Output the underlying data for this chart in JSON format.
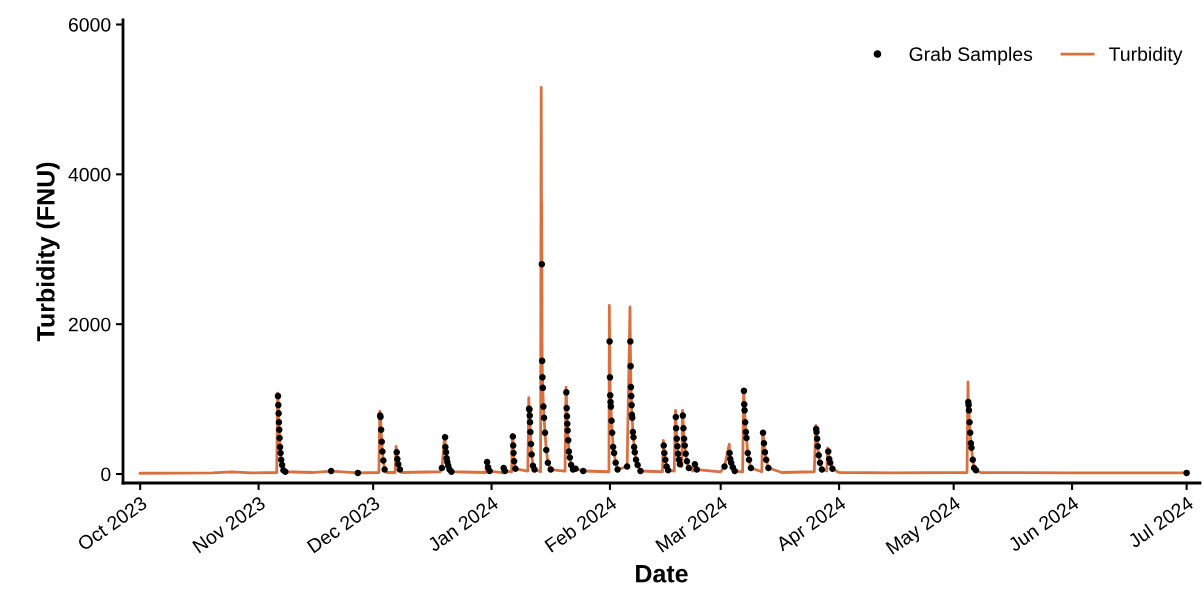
{
  "chart_data": {
    "type": "line",
    "xlabel": "Date",
    "ylabel": "Turbidity (FNU)",
    "xlim": [
      "2023-09-26T12:00",
      "2024-07-04T12:00"
    ],
    "xticks": [
      {
        "value": "2023-10-01",
        "label": "Oct 2023"
      },
      {
        "value": "2023-11-01",
        "label": "Nov 2023"
      },
      {
        "value": "2023-12-01",
        "label": "Dec 2023"
      },
      {
        "value": "2024-01-01",
        "label": "Jan 2024"
      },
      {
        "value": "2024-02-01",
        "label": "Feb 2024"
      },
      {
        "value": "2024-03-01",
        "label": "Mar 2024"
      },
      {
        "value": "2024-04-01",
        "label": "Apr 2024"
      },
      {
        "value": "2024-05-01",
        "label": "May 2024"
      },
      {
        "value": "2024-06-01",
        "label": "Jun 2024"
      },
      {
        "value": "2024-07-01",
        "label": "Jul 2024"
      }
    ],
    "ylim": [
      -120,
      6060
    ],
    "yticks": [
      0,
      2000,
      4000,
      6000
    ],
    "grid": false,
    "legend": "top right",
    "series": [
      {
        "name": "Grab Samples",
        "type": "scatter",
        "color": "#000000",
        "marker": "circle",
        "x": [
          "2023-11-06T02:00",
          "2023-11-06T04:00",
          "2023-11-06T06:00",
          "2023-11-06T08:00",
          "2023-11-06T10:00",
          "2023-11-06T12:00",
          "2023-11-06T15:00",
          "2023-11-06T18:00",
          "2023-11-06T22:00",
          "2023-11-07T04:00",
          "2023-11-07T12:00",
          "2023-11-08T00:00",
          "2023-11-20T00:00",
          "2023-11-27T00:00",
          "2023-12-02T20:00",
          "2023-12-02T22:00",
          "2023-12-03T02:00",
          "2023-12-03T06:00",
          "2023-12-03T10:00",
          "2023-12-03T16:00",
          "2023-12-04T00:00",
          "2023-12-07T04:00",
          "2023-12-07T08:00",
          "2023-12-07T14:00",
          "2023-12-08T00:00",
          "2023-12-19T00:00",
          "2023-12-19T20:00",
          "2023-12-19T22:00",
          "2023-12-20T02:00",
          "2023-12-20T06:00",
          "2023-12-20T10:00",
          "2023-12-20T16:00",
          "2023-12-21T00:00",
          "2023-12-21T12:00",
          "2023-12-30T20:00",
          "2023-12-31T02:00",
          "2023-12-31T12:00",
          "2024-01-04T04:00",
          "2024-01-04T12:00",
          "2024-01-06T14:00",
          "2024-01-06T16:00",
          "2024-01-06T18:00",
          "2024-01-06T22:00",
          "2024-01-07T06:00",
          "2024-01-10T20:00",
          "2024-01-10T22:00",
          "2024-01-11T00:00",
          "2024-01-11T02:00",
          "2024-01-11T04:00",
          "2024-01-11T08:00",
          "2024-01-11T12:00",
          "2024-01-11T20:00",
          "2024-01-12T06:00",
          "2024-01-14T04:00",
          "2024-01-14T06:00",
          "2024-01-14T08:00",
          "2024-01-14T10:00",
          "2024-01-14T14:00",
          "2024-01-14T18:00",
          "2024-01-15T00:00",
          "2024-01-15T08:00",
          "2024-01-15T18:00",
          "2024-01-16T12:00",
          "2024-01-20T14:00",
          "2024-01-20T16:00",
          "2024-01-20T18:00",
          "2024-01-20T20:00",
          "2024-01-20T22:00",
          "2024-01-21T02:00",
          "2024-01-21T06:00",
          "2024-01-21T12:00",
          "2024-01-21T20:00",
          "2024-01-22T08:00",
          "2024-01-23T00:00",
          "2024-01-25T00:00",
          "2024-01-31T22:00",
          "2024-02-01T00:00",
          "2024-02-01T02:00",
          "2024-02-01T04:00",
          "2024-02-01T06:00",
          "2024-02-01T10:00",
          "2024-02-01T14:00",
          "2024-02-01T20:00",
          "2024-02-02T02:00",
          "2024-02-02T12:00",
          "2024-02-03T00:00",
          "2024-02-05T12:00",
          "2024-02-06T08:00",
          "2024-02-06T10:00",
          "2024-02-06T12:00",
          "2024-02-06T14:00",
          "2024-02-06T16:00",
          "2024-02-06T18:00",
          "2024-02-06T20:00",
          "2024-02-07T00:00",
          "2024-02-07T04:00",
          "2024-02-07T08:00",
          "2024-02-07T12:00",
          "2024-02-07T20:00",
          "2024-02-08T06:00",
          "2024-02-09T00:00",
          "2024-02-15T02:00",
          "2024-02-15T06:00",
          "2024-02-15T12:00",
          "2024-02-15T20:00",
          "2024-02-16T06:00",
          "2024-02-18T06:00",
          "2024-02-18T08:00",
          "2024-02-18T12:00",
          "2024-02-18T16:00",
          "2024-02-18T20:00",
          "2024-02-19T02:00",
          "2024-02-19T08:00",
          "2024-02-20T02:00",
          "2024-02-20T06:00",
          "2024-02-20T10:00",
          "2024-02-20T14:00",
          "2024-02-20T20:00",
          "2024-02-21T04:00",
          "2024-02-21T16:00",
          "2024-02-23T06:00",
          "2024-02-23T18:00",
          "2024-03-02T00:00",
          "2024-03-03T08:00",
          "2024-03-03T12:00",
          "2024-03-03T18:00",
          "2024-03-04T04:00",
          "2024-03-04T16:00",
          "2024-03-07T02:00",
          "2024-03-07T04:00",
          "2024-03-07T06:00",
          "2024-03-07T10:00",
          "2024-03-07T14:00",
          "2024-03-07T18:00",
          "2024-03-08T02:00",
          "2024-03-08T10:00",
          "2024-03-08T22:00",
          "2024-03-12T02:00",
          "2024-03-12T08:00",
          "2024-03-12T14:00",
          "2024-03-12T22:00",
          "2024-03-13T12:00",
          "2024-03-26T00:00",
          "2024-03-26T02:00",
          "2024-03-26T06:00",
          "2024-03-26T10:00",
          "2024-03-26T16:00",
          "2024-03-27T00:00",
          "2024-03-27T12:00",
          "2024-03-29T04:00",
          "2024-03-29T10:00",
          "2024-03-29T16:00",
          "2024-03-30T06:00",
          "2024-05-04T20:00",
          "2024-05-04T22:00",
          "2024-05-05T00:00",
          "2024-05-05T04:00",
          "2024-05-05T08:00",
          "2024-05-05T12:00",
          "2024-05-05T16:00",
          "2024-05-06T00:00",
          "2024-05-06T08:00",
          "2024-05-06T20:00",
          "2024-07-01T00:00"
        ],
        "values": [
          1040,
          920,
          810,
          690,
          590,
          480,
          360,
          280,
          190,
          120,
          50,
          30,
          40,
          15,
          780,
          760,
          590,
          430,
          300,
          180,
          60,
          290,
          200,
          130,
          60,
          80,
          490,
          360,
          290,
          210,
          160,
          110,
          60,
          30,
          160,
          90,
          40,
          80,
          40,
          500,
          380,
          280,
          170,
          70,
          870,
          860,
          780,
          690,
          560,
          400,
          260,
          110,
          60,
          2800,
          1510,
          1290,
          1150,
          900,
          750,
          550,
          320,
          150,
          60,
          1090,
          880,
          770,
          670,
          580,
          450,
          300,
          220,
          120,
          60,
          70,
          40,
          1770,
          1290,
          1050,
          960,
          900,
          710,
          550,
          360,
          280,
          150,
          60,
          100,
          1770,
          1440,
          1160,
          1040,
          920,
          790,
          750,
          560,
          490,
          360,
          290,
          190,
          120,
          40,
          380,
          280,
          190,
          100,
          50,
          760,
          610,
          470,
          370,
          270,
          190,
          130,
          780,
          610,
          470,
          380,
          270,
          170,
          80,
          130,
          60,
          100,
          280,
          200,
          150,
          90,
          40,
          1110,
          930,
          850,
          690,
          560,
          480,
          280,
          190,
          80,
          550,
          410,
          290,
          190,
          80,
          600,
          560,
          470,
          370,
          250,
          150,
          60,
          300,
          200,
          150,
          70,
          960,
          920,
          850,
          690,
          550,
          410,
          350,
          190,
          80,
          50,
          15
        ]
      },
      {
        "name": "Turbidity",
        "color": "#d8703f",
        "line_style": "solid",
        "x": [
          "2023-10-01T00:00",
          "2023-10-20T00:00",
          "2023-10-25T00:00",
          "2023-10-30T00:00",
          "2023-11-05T18:00",
          "2023-11-06T00:00",
          "2023-11-06T02:00",
          "2023-11-06T04:00",
          "2023-11-06T06:00",
          "2023-11-06T08:00",
          "2023-11-06T10:00",
          "2023-11-06T12:00",
          "2023-11-06T15:00",
          "2023-11-06T18:00",
          "2023-11-06T22:00",
          "2023-11-07T04:00",
          "2023-11-07T12:00",
          "2023-11-08T00:00",
          "2023-11-15T00:00",
          "2023-11-20T00:00",
          "2023-11-27T00:00",
          "2023-12-02T12:00",
          "2023-12-02T18:00",
          "2023-12-02T20:00",
          "2023-12-02T22:00",
          "2023-12-03T02:00",
          "2023-12-03T06:00",
          "2023-12-03T10:00",
          "2023-12-03T16:00",
          "2023-12-04T00:00",
          "2023-12-04T12:00",
          "2023-12-06T18:00",
          "2023-12-07T00:00",
          "2023-12-07T04:00",
          "2023-12-07T08:00",
          "2023-12-07T14:00",
          "2023-12-08T00:00",
          "2023-12-08T12:00",
          "2023-12-18T12:00",
          "2023-12-19T00:00",
          "2023-12-19T18:00",
          "2023-12-19T20:00",
          "2023-12-19T22:00",
          "2023-12-20T02:00",
          "2023-12-20T06:00",
          "2023-12-20T10:00",
          "2023-12-20T16:00",
          "2023-12-21T00:00",
          "2023-12-21T12:00",
          "2023-12-30T12:00",
          "2023-12-30T18:00",
          "2023-12-30T20:00",
          "2023-12-31T02:00",
          "2023-12-31T12:00",
          "2024-01-03T18:00",
          "2024-01-04T00:00",
          "2024-01-04T04:00",
          "2024-01-04T12:00",
          "2024-01-06T06:00",
          "2024-01-06T12:00",
          "2024-01-06T14:00",
          "2024-01-06T16:00",
          "2024-01-06T18:00",
          "2024-01-06T22:00",
          "2024-01-07T06:00",
          "2024-01-10T12:00",
          "2024-01-10T18:00",
          "2024-01-10T20:00",
          "2024-01-10T22:00",
          "2024-01-11T00:00",
          "2024-01-11T02:00",
          "2024-01-11T04:00",
          "2024-01-11T08:00",
          "2024-01-11T12:00",
          "2024-01-11T20:00",
          "2024-01-12T06:00",
          "2024-01-13T20:00",
          "2024-01-14T00:00",
          "2024-01-14T02:00",
          "2024-01-14T03:00",
          "2024-01-14T04:00",
          "2024-01-14T06:00",
          "2024-01-14T08:00",
          "2024-01-14T10:00",
          "2024-01-14T14:00",
          "2024-01-14T18:00",
          "2024-01-15T00:00",
          "2024-01-15T08:00",
          "2024-01-15T18:00",
          "2024-01-16T12:00",
          "2024-01-20T06:00",
          "2024-01-20T12:00",
          "2024-01-20T14:00",
          "2024-01-20T16:00",
          "2024-01-20T18:00",
          "2024-01-20T20:00",
          "2024-01-20T22:00",
          "2024-01-21T02:00",
          "2024-01-21T06:00",
          "2024-01-21T12:00",
          "2024-01-21T20:00",
          "2024-01-22T08:00",
          "2024-01-23T00:00",
          "2024-01-25T00:00",
          "2024-01-31T18:00",
          "2024-01-31T20:00",
          "2024-01-31T22:00",
          "2024-02-01T00:00",
          "2024-02-01T02:00",
          "2024-02-01T04:00",
          "2024-02-01T06:00",
          "2024-02-01T10:00",
          "2024-02-01T14:00",
          "2024-02-01T20:00",
          "2024-02-02T02:00",
          "2024-02-02T12:00",
          "2024-02-03T00:00",
          "2024-02-05T12:00",
          "2024-02-06T06:00",
          "2024-02-06T08:00",
          "2024-02-06T10:00",
          "2024-02-06T12:00",
          "2024-02-06T14:00",
          "2024-02-06T16:00",
          "2024-02-06T18:00",
          "2024-02-06T20:00",
          "2024-02-07T00:00",
          "2024-02-07T04:00",
          "2024-02-07T08:00",
          "2024-02-07T12:00",
          "2024-02-07T20:00",
          "2024-02-08T06:00",
          "2024-02-09T00:00",
          "2024-02-14T18:00",
          "2024-02-15T00:00",
          "2024-02-15T02:00",
          "2024-02-15T06:00",
          "2024-02-15T12:00",
          "2024-02-15T20:00",
          "2024-02-16T06:00",
          "2024-02-17T20:00",
          "2024-02-18T04:00",
          "2024-02-18T06:00",
          "2024-02-18T08:00",
          "2024-02-18T12:00",
          "2024-02-18T16:00",
          "2024-02-18T20:00",
          "2024-02-19T02:00",
          "2024-02-19T08:00",
          "2024-02-19T20:00",
          "2024-02-20T00:00",
          "2024-02-20T02:00",
          "2024-02-20T06:00",
          "2024-02-20T10:00",
          "2024-02-20T14:00",
          "2024-02-20T20:00",
          "2024-02-21T04:00",
          "2024-02-21T16:00",
          "2024-02-22T18:00",
          "2024-02-23T00:00",
          "2024-02-23T06:00",
          "2024-02-23T18:00",
          "2024-03-01T00:00",
          "2024-03-02T00:00",
          "2024-03-03T06:00",
          "2024-03-03T08:00",
          "2024-03-03T12:00",
          "2024-03-03T18:00",
          "2024-03-04T04:00",
          "2024-03-04T16:00",
          "2024-03-06T18:00",
          "2024-03-07T00:00",
          "2024-03-07T02:00",
          "2024-03-07T04:00",
          "2024-03-07T06:00",
          "2024-03-07T10:00",
          "2024-03-07T14:00",
          "2024-03-07T18:00",
          "2024-03-08T02:00",
          "2024-03-08T10:00",
          "2024-03-08T22:00",
          "2024-03-11T18:00",
          "2024-03-12T00:00",
          "2024-03-12T02:00",
          "2024-03-12T08:00",
          "2024-03-12T14:00",
          "2024-03-12T22:00",
          "2024-03-13T12:00",
          "2024-03-17T00:00",
          "2024-03-25T12:00",
          "2024-03-25T22:00",
          "2024-03-26T00:00",
          "2024-03-26T02:00",
          "2024-03-26T06:00",
          "2024-03-26T10:00",
          "2024-03-26T16:00",
          "2024-03-27T00:00",
          "2024-03-27T12:00",
          "2024-03-28T18:00",
          "2024-03-29T00:00",
          "2024-03-29T04:00",
          "2024-03-29T10:00",
          "2024-03-29T16:00",
          "2024-03-30T06:00",
          "2024-04-01T00:00",
          "2024-04-15T00:00",
          "2024-05-04T12:00",
          "2024-05-04T18:00",
          "2024-05-04T20:00",
          "2024-05-04T22:00",
          "2024-05-05T00:00",
          "2024-05-05T04:00",
          "2024-05-05T08:00",
          "2024-05-05T12:00",
          "2024-05-05T16:00",
          "2024-05-06T00:00",
          "2024-05-06T08:00",
          "2024-05-06T20:00",
          "2024-05-08T00:00",
          "2024-06-01T00:00",
          "2024-06-15T00:00",
          "2024-07-01T00:00"
        ],
        "values": [
          10,
          15,
          30,
          15,
          20,
          1080,
          1040,
          920,
          810,
          690,
          590,
          480,
          360,
          280,
          190,
          120,
          50,
          30,
          20,
          40,
          15,
          20,
          840,
          780,
          760,
          590,
          430,
          300,
          180,
          60,
          20,
          20,
          370,
          290,
          200,
          130,
          60,
          20,
          30,
          80,
          520,
          490,
          360,
          290,
          210,
          160,
          110,
          60,
          30,
          20,
          180,
          160,
          90,
          40,
          20,
          90,
          80,
          40,
          30,
          530,
          500,
          380,
          280,
          170,
          70,
          40,
          1020,
          870,
          860,
          780,
          690,
          560,
          400,
          260,
          110,
          60,
          30,
          5160,
          3400,
          3620,
          2800,
          1510,
          1290,
          1150,
          900,
          750,
          550,
          320,
          150,
          60,
          40,
          1160,
          1090,
          880,
          770,
          670,
          580,
          450,
          300,
          220,
          120,
          60,
          70,
          40,
          30,
          2250,
          1770,
          1290,
          1050,
          960,
          900,
          710,
          550,
          360,
          280,
          150,
          60,
          100,
          2230,
          1770,
          1440,
          1160,
          1040,
          920,
          790,
          750,
          560,
          490,
          360,
          290,
          190,
          120,
          40,
          30,
          450,
          380,
          280,
          190,
          100,
          50,
          40,
          850,
          760,
          610,
          470,
          370,
          270,
          190,
          130,
          100,
          850,
          780,
          610,
          470,
          380,
          270,
          170,
          80,
          40,
          150,
          130,
          60,
          30,
          100,
          400,
          280,
          200,
          150,
          90,
          40,
          30,
          1120,
          1110,
          930,
          850,
          690,
          560,
          480,
          280,
          190,
          80,
          30,
          560,
          550,
          410,
          290,
          190,
          80,
          20,
          30,
          650,
          600,
          560,
          470,
          370,
          250,
          150,
          60,
          40,
          350,
          300,
          200,
          150,
          70,
          20,
          15,
          20,
          1230,
          960,
          920,
          850,
          690,
          550,
          410,
          350,
          190,
          80,
          50,
          20,
          15,
          15,
          15
        ]
      }
    ]
  }
}
